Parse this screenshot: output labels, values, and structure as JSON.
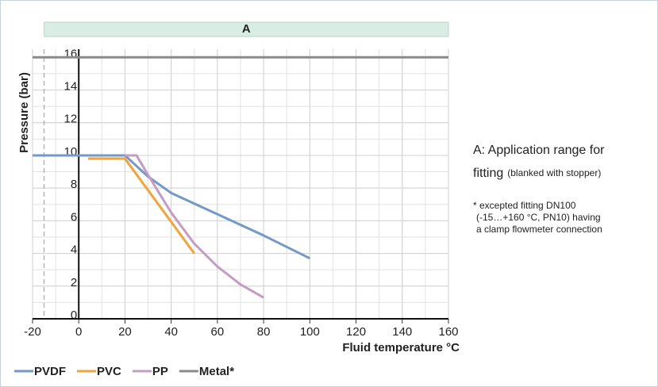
{
  "chart_data": {
    "type": "line",
    "y_label": "Pressure (bar)",
    "x_label": "Fluid temperature °C",
    "xlim": [
      -20,
      160
    ],
    "xticks": [
      -20,
      0,
      20,
      40,
      60,
      80,
      100,
      120,
      140,
      160
    ],
    "ylim": [
      0,
      16.5
    ],
    "yticks": [
      0,
      2,
      4,
      6,
      8,
      10,
      12,
      14,
      16
    ],
    "grid": true,
    "band": {
      "label": "A",
      "range": [
        -15,
        160
      ],
      "color": "#d9ede4"
    },
    "series": [
      {
        "name": "PVDF",
        "color": "#7399c8",
        "x": [
          -20,
          20,
          30,
          40,
          60,
          80,
          100
        ],
        "values": [
          10,
          10,
          8.7,
          7.7,
          6.4,
          5.1,
          3.7
        ]
      },
      {
        "name": "PVC",
        "color": "#f0a43a",
        "x": [
          4,
          20,
          50
        ],
        "values": [
          9.8,
          9.8,
          4
        ]
      },
      {
        "name": "PP",
        "color": "#c49cc4",
        "x": [
          20,
          25,
          30,
          40,
          50,
          60,
          70,
          80
        ],
        "values": [
          10,
          10,
          8.8,
          6.5,
          4.6,
          3.2,
          2.1,
          1.3
        ]
      },
      {
        "name": "Metal*",
        "color": "#8a8a8a",
        "x": [
          -20,
          160
        ],
        "values": [
          16,
          16
        ]
      }
    ],
    "notes": {
      "line1": "A: Application range for",
      "line2": "fitting",
      "line2_small": "(blanked with stopper)",
      "foot1": "* excepted fitting DN100",
      "foot2": "(-15…+160 °C, PN10) having",
      "foot3": "a clamp flowmeter connection"
    }
  }
}
